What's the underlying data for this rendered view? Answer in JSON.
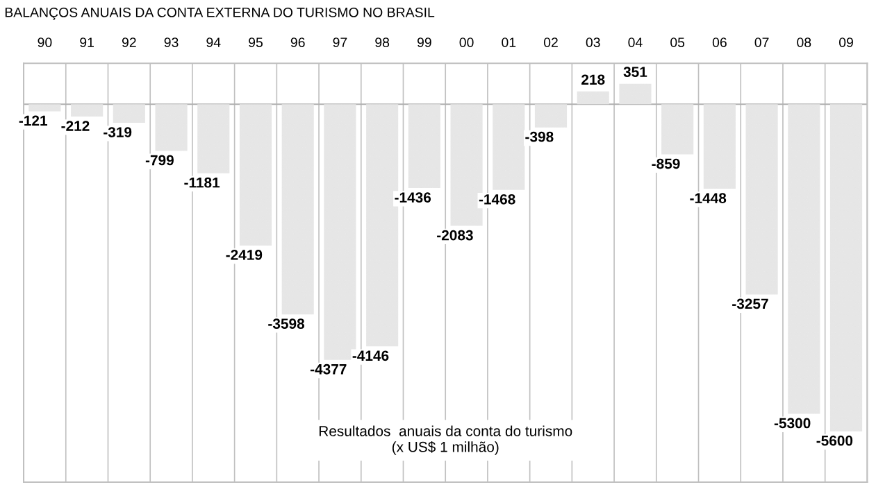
{
  "chart_data": {
    "type": "bar",
    "title": "BALANÇOS ANUAIS DA CONTA EXTERNA DO TURISMO NO BRASIL",
    "categories": [
      "90",
      "91",
      "92",
      "93",
      "94",
      "95",
      "96",
      "97",
      "98",
      "99",
      "00",
      "01",
      "02",
      "03",
      "04",
      "05",
      "06",
      "07",
      "08",
      "09"
    ],
    "values": [
      -121,
      -212,
      -319,
      -799,
      -1181,
      -2419,
      -3598,
      -4377,
      -4146,
      -1436,
      -2083,
      -1468,
      -398,
      218,
      351,
      -859,
      -1448,
      -3257,
      -5300,
      -5600
    ],
    "color": "#e6e6e6",
    "ylim": [
      -6470,
      700
    ],
    "data_labels": true,
    "tick_labels": "x",
    "grid": "x",
    "annotations": [
      "Resultados  anuais da conta do turismo\n(x US$ 1 milhão)"
    ]
  }
}
